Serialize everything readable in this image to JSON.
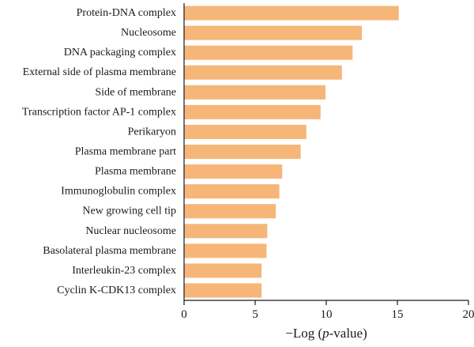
{
  "chart_data": {
    "type": "bar",
    "orientation": "horizontal",
    "categories": [
      "Protein-DNA complex",
      "Nucleosome",
      "DNA packaging complex",
      "External side of plasma membrane",
      "Side of membrane",
      "Transcription factor AP-1 complex",
      "Perikaryon",
      "Plasma membrane part",
      "Plasma membrane",
      "Immunoglobulin complex",
      "New growing cell tip",
      "Nuclear nucleosome",
      "Basolateral plasma membrane",
      "Interleukin-23 complex",
      "Cyclin K-CDK13 complex"
    ],
    "values": [
      15.1,
      12.5,
      11.85,
      11.1,
      9.95,
      9.6,
      8.6,
      8.2,
      6.9,
      6.7,
      6.45,
      5.85,
      5.8,
      5.45,
      5.45
    ],
    "xlabel": "−Log (p-value)",
    "xlabel_parts": {
      "pre": "−Log (",
      "italic": "p",
      "post": "-value)"
    },
    "xlim": [
      0,
      20
    ],
    "xticks": [
      0,
      5,
      10,
      15,
      20
    ],
    "bar_color": "#f6b679",
    "grid": false
  }
}
